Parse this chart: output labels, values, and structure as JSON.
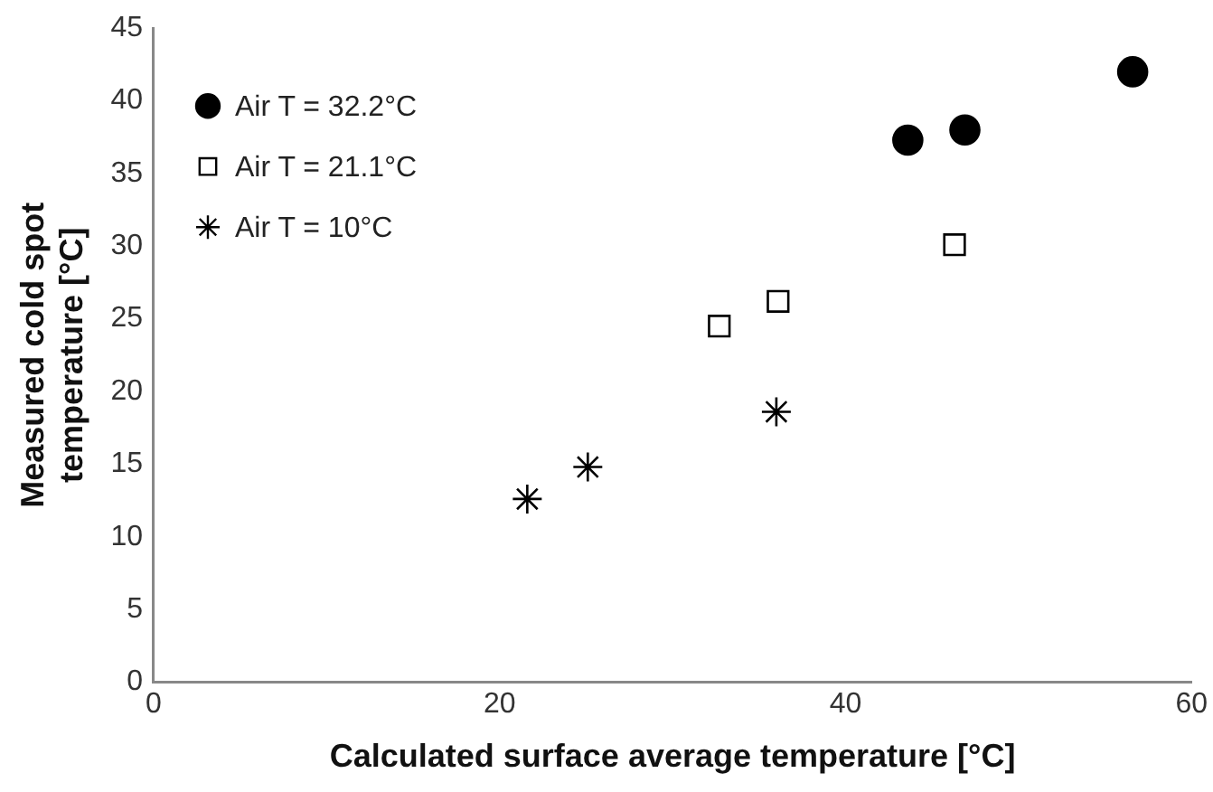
{
  "chart_data": {
    "type": "scatter",
    "xlabel": "Calculated surface average temperature [°C]",
    "ylabel": "Measured cold spot temperature [°C]",
    "xlim": [
      0,
      60
    ],
    "xticks": [
      0,
      20,
      40,
      60
    ],
    "ylim": [
      0,
      45
    ],
    "yticks": [
      0,
      5,
      10,
      15,
      20,
      25,
      30,
      35,
      40,
      45
    ],
    "grid": false,
    "legend": "top left",
    "series": [
      {
        "name": "Air T = 32.2°C",
        "color": "#000000",
        "marker": "circle",
        "x": [
          43.6,
          46.9,
          56.6
        ],
        "values": [
          37.3,
          38.0,
          42.0
        ]
      },
      {
        "name": "Air T = 21.1°C",
        "color": "#000000",
        "marker": "square",
        "x": [
          32.7,
          36.1,
          46.3
        ],
        "values": [
          24.5,
          26.2,
          30.1
        ]
      },
      {
        "name": "Air T = 10°C",
        "color": "#000000",
        "marker": "cross",
        "x": [
          21.6,
          25.1,
          36.0
        ],
        "values": [
          12.6,
          14.8,
          18.6
        ]
      }
    ]
  }
}
